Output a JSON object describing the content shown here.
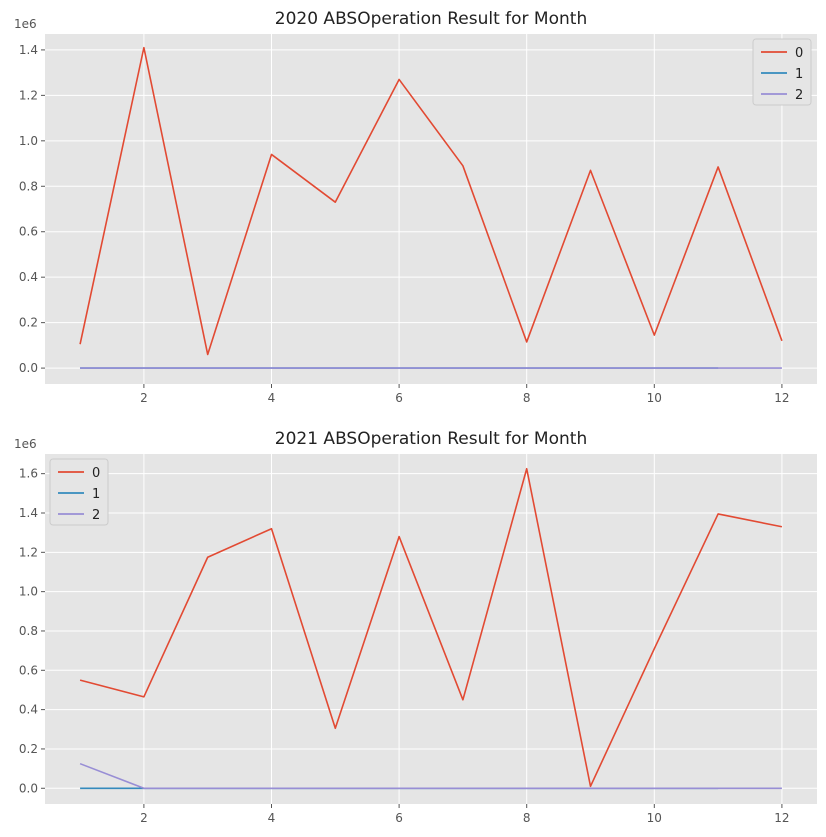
{
  "chart_data": [
    {
      "type": "line",
      "title": "2020 ABSOperation Result for Month",
      "xlabel": "",
      "ylabel": "",
      "y_offset_label": "1e6",
      "xlim": [
        0.45,
        12.55
      ],
      "ylim": [
        -0.07,
        1.47
      ],
      "x_ticks": [
        2,
        4,
        6,
        8,
        10,
        12
      ],
      "y_ticks": [
        0.0,
        0.2,
        0.4,
        0.6,
        0.8,
        1.0,
        1.2,
        1.4
      ],
      "grid": true,
      "legend_position": "upper right",
      "series": [
        {
          "name": "0",
          "color": "#E24A33",
          "x": [
            1,
            2,
            3,
            4,
            5,
            6,
            7,
            8,
            9,
            10,
            11,
            12
          ],
          "values": [
            0.105,
            1.41,
            0.06,
            0.94,
            0.73,
            1.27,
            0.89,
            0.115,
            0.87,
            0.145,
            0.885,
            0.12
          ]
        },
        {
          "name": "1",
          "color": "#348ABD",
          "x": [
            1,
            2,
            3,
            4,
            5,
            6,
            7,
            8,
            9,
            10,
            11
          ],
          "values": [
            0,
            0,
            0,
            0,
            0,
            0,
            0,
            0,
            0,
            0,
            0
          ]
        },
        {
          "name": "2",
          "color": "#988ED5",
          "x": [
            1,
            2,
            3,
            4,
            5,
            6,
            7,
            8,
            9,
            10,
            11,
            12
          ],
          "values": [
            0,
            0,
            0,
            0,
            0,
            0,
            0,
            0,
            0,
            0,
            0,
            0
          ]
        }
      ]
    },
    {
      "type": "line",
      "title": "2021 ABSOperation Result for Month",
      "xlabel": "",
      "ylabel": "",
      "y_offset_label": "1e6",
      "xlim": [
        0.45,
        12.55
      ],
      "ylim": [
        -0.08,
        1.7
      ],
      "x_ticks": [
        2,
        4,
        6,
        8,
        10,
        12
      ],
      "y_ticks": [
        0.0,
        0.2,
        0.4,
        0.6,
        0.8,
        1.0,
        1.2,
        1.4,
        1.6
      ],
      "grid": true,
      "legend_position": "upper left",
      "series": [
        {
          "name": "0",
          "color": "#E24A33",
          "x": [
            1,
            2,
            3,
            4,
            5,
            6,
            7,
            8,
            9,
            10,
            11,
            12
          ],
          "values": [
            0.55,
            0.465,
            1.175,
            1.32,
            0.305,
            1.28,
            0.45,
            1.625,
            0.01,
            0.71,
            1.395,
            1.33
          ]
        },
        {
          "name": "1",
          "color": "#348ABD",
          "x": [
            1,
            2,
            3,
            4,
            5,
            6,
            7,
            8,
            9,
            10,
            11
          ],
          "values": [
            0,
            0,
            0,
            0,
            0,
            0,
            0,
            0,
            0,
            0,
            0
          ]
        },
        {
          "name": "2",
          "color": "#988ED5",
          "x": [
            1,
            2,
            3,
            4,
            5,
            6,
            7,
            8,
            9,
            10,
            11,
            12
          ],
          "values": [
            0.125,
            0,
            0,
            0,
            0,
            0,
            0,
            0,
            0,
            0,
            0,
            0
          ]
        }
      ]
    }
  ]
}
